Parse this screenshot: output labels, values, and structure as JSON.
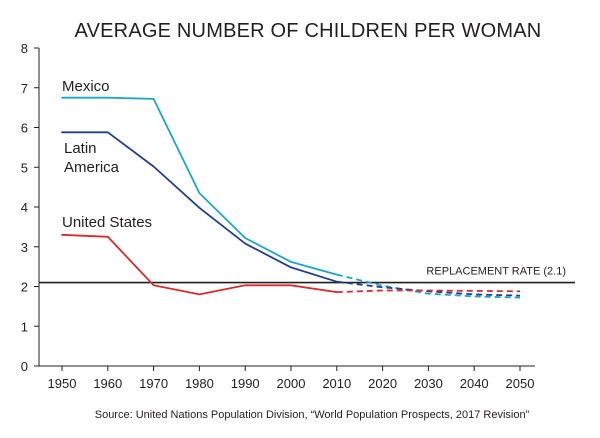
{
  "chart_data": {
    "type": "line",
    "title": "AVERAGE NUMBER OF CHILDREN PER WOMAN",
    "source": "Source: United Nations Population Division, “World Population Prospects, 2017 Revision”",
    "x": [
      1950,
      1960,
      1970,
      1980,
      1990,
      2000,
      2010,
      2020,
      2030,
      2040,
      2050
    ],
    "x_tick_labels": [
      "1950",
      "1960",
      "1970",
      "1980",
      "1990",
      "2000",
      "2010",
      "2020",
      "2030",
      "2040",
      "2050"
    ],
    "xlim": [
      1950,
      2050
    ],
    "y_tick_labels": [
      "0",
      "1",
      "2",
      "3",
      "4",
      "5",
      "6",
      "7",
      "8"
    ],
    "y_ticks": [
      0,
      1,
      2,
      3,
      4,
      5,
      6,
      7,
      8
    ],
    "ylim": [
      0,
      8
    ],
    "grid": false,
    "reference_line": {
      "label": "REPLACEMENT RATE (2.1)",
      "value": 2.1,
      "color": "#231f20"
    },
    "projection_start": 2010,
    "series": [
      {
        "name": "Mexico",
        "color": "#1aa6c9",
        "values": [
          6.75,
          6.75,
          6.72,
          4.35,
          3.22,
          2.62,
          2.3,
          2.02,
          1.82,
          1.75,
          1.72
        ]
      },
      {
        "name": "Latin America",
        "name_lines": [
          "Latin",
          "America"
        ],
        "color": "#1f3f93",
        "values": [
          5.88,
          5.88,
          5.02,
          3.98,
          3.08,
          2.48,
          2.12,
          1.98,
          1.88,
          1.8,
          1.77
        ]
      },
      {
        "name": "United States",
        "color": "#d92b2b",
        "values": [
          3.3,
          3.25,
          2.03,
          1.8,
          2.03,
          2.03,
          1.86,
          1.9,
          1.9,
          1.89,
          1.88
        ]
      }
    ]
  }
}
